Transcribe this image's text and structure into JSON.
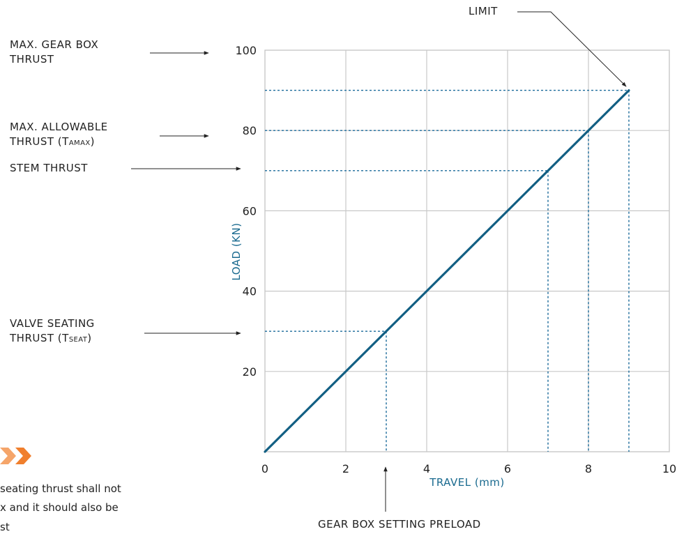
{
  "annotations": {
    "max_gearbox_line1": "MAX. GEAR BOX",
    "max_gearbox_line2": "THRUST",
    "max_allowable_line1": "MAX. ALLOWABLE",
    "max_allowable_line2_prefix": "THRUST (T",
    "max_allowable_line2_sub": "AMAX",
    "max_allowable_line2_suffix": ")",
    "stem_thrust": "STEM THRUST",
    "valve_seating_line1": "VALVE SEATING",
    "valve_seating_line2_prefix": "THRUST (T",
    "valve_seating_line2_sub": "SEAT",
    "valve_seating_line2_suffix": ")",
    "limit": "LIMIT",
    "gearbox_preload": "GEAR BOX SETTING PRELOAD"
  },
  "note": {
    "line1": "seating thrust shall not",
    "line2": "x and it should also be",
    "line3": "st"
  },
  "colors": {
    "line": "#125f83",
    "dashed": "#1a6a9a",
    "grid": "#c8c8c8",
    "axis_title": "#1a6a8f",
    "chevron": "#f2913d"
  },
  "chart_data": {
    "type": "line",
    "title": "",
    "xlabel": "TRAVEL (mm)",
    "ylabel": "LOAD (KN)",
    "xlim": [
      0,
      10
    ],
    "ylim": [
      0,
      100
    ],
    "x_ticks": [
      "0",
      "2",
      "4",
      "6",
      "8",
      "10"
    ],
    "y_ticks": [
      "20",
      "40",
      "60",
      "80",
      "100"
    ],
    "grid": true,
    "series": [
      {
        "x": [
          0,
          9
        ],
        "y": [
          0,
          90
        ]
      }
    ],
    "reference_points": [
      {
        "x": 3,
        "y": 30
      },
      {
        "x": 7,
        "y": 70
      },
      {
        "x": 8,
        "y": 80
      },
      {
        "x": 9,
        "y": 90
      }
    ]
  }
}
